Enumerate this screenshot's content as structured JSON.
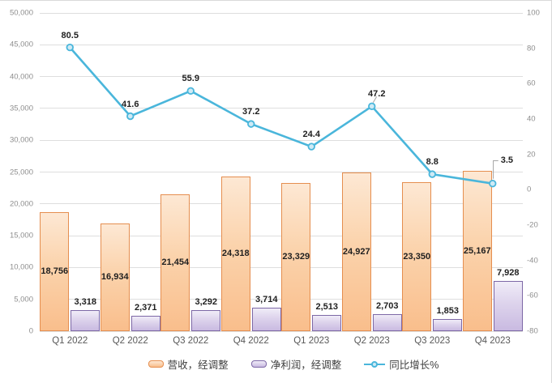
{
  "chart_data": {
    "type": "combo",
    "categories": [
      "Q1 2022",
      "Q2 2022",
      "Q3 2022",
      "Q4 2022",
      "Q1 2023",
      "Q2 2023",
      "Q3 2023",
      "Q4 2023"
    ],
    "series": [
      {
        "name": "营收，经调整",
        "type": "bar",
        "axis": "left",
        "color": "#E58E4F",
        "values": [
          18756,
          16934,
          21454,
          24318,
          23329,
          24927,
          23350,
          25167
        ],
        "labels": [
          "18,756",
          "16,934",
          "21,454",
          "24,318",
          "23,329",
          "24,927",
          "23,350",
          "25,167"
        ]
      },
      {
        "name": "净利润，经调整",
        "type": "bar",
        "axis": "left",
        "color": "#7D68A6",
        "values": [
          3318,
          2371,
          3292,
          3714,
          2513,
          2703,
          1853,
          7928
        ],
        "labels": [
          "3,318",
          "2,371",
          "3,292",
          "3,714",
          "2,513",
          "2,703",
          "1,853",
          "7,928"
        ]
      },
      {
        "name": "同比增长%",
        "type": "line",
        "axis": "right",
        "color": "#4AB6DB",
        "values": [
          80.5,
          41.6,
          55.9,
          37.2,
          24.4,
          47.2,
          8.8,
          3.5
        ],
        "labels": [
          "80.5",
          "41.6",
          "55.9",
          "37.2",
          "24.4",
          "47.2",
          "8.8",
          "3.5"
        ]
      }
    ],
    "left_axis": {
      "min": 0,
      "max": 50000,
      "step": 5000,
      "ticks": [
        "0",
        "5,000",
        "10,000",
        "15,000",
        "20,000",
        "25,000",
        "30,000",
        "35,000",
        "40,000",
        "45,000",
        "50,000"
      ]
    },
    "right_axis": {
      "min": -80,
      "max": 100,
      "step": 20,
      "ticks": [
        "-80",
        "-60",
        "-40",
        "-20",
        "0",
        "20",
        "40",
        "60",
        "80",
        "100"
      ]
    },
    "grid": true,
    "legend_position": "bottom",
    "title": "",
    "xlabel": "",
    "ylabel": ""
  },
  "colors": {
    "revenue_border": "#E58E4F",
    "profit_border": "#7D68A6",
    "growth_line": "#4AB6DB",
    "gridline": "#DEDEDE",
    "axis_text": "#8E8E8E",
    "category_text": "#595959",
    "data_label_text": "#1F1F1F"
  }
}
